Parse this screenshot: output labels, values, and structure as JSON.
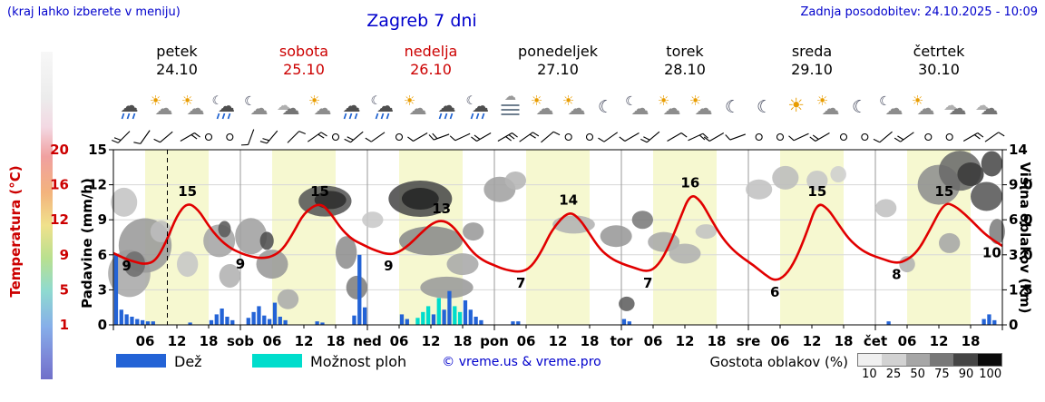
{
  "header": {
    "hint": "(kraj lahko izberete v meniju)",
    "title": "Zagreb 7 dni",
    "updated": "Zadnja posodobitev: 24.10.2025 - 10:09"
  },
  "days": [
    {
      "name": "petek",
      "date": "24.10",
      "highlight": false
    },
    {
      "name": "sobota",
      "date": "25.10",
      "highlight": true
    },
    {
      "name": "nedelja",
      "date": "26.10",
      "highlight": true
    },
    {
      "name": "ponedeljek",
      "date": "27.10",
      "highlight": false
    },
    {
      "name": "torek",
      "date": "28.10",
      "highlight": false
    },
    {
      "name": "sreda",
      "date": "29.10",
      "highlight": false
    },
    {
      "name": "četrtek",
      "date": "30.10",
      "highlight": false
    }
  ],
  "axes": {
    "temp_label": "Temperatura (°C)",
    "precip_label": "Padavine (mm/h)",
    "cloud_label": "Višina oblakov (km)",
    "temp_ticks": [
      "20",
      "16",
      "12",
      "9",
      "5",
      "1"
    ],
    "precip_ticks": [
      "15",
      "12",
      "9",
      "6",
      "3",
      "0"
    ],
    "cloud_ticks": [
      "14",
      "9.0",
      "6.0",
      "3.0",
      "1.5",
      "0"
    ]
  },
  "x_axis": {
    "hour_labels": [
      "06",
      "12",
      "18"
    ],
    "day_abbrevs": [
      "sob",
      "ned",
      "pon",
      "tor",
      "sre",
      "čet"
    ]
  },
  "legend": {
    "rain_label": "Dež",
    "showers_label": "Možnost ploh",
    "copyright": "© vreme.us & vreme.pro",
    "density_label": "Gostota oblakov (%)",
    "density_ticks": [
      "10",
      "25",
      "50",
      "75",
      "90",
      "100"
    ],
    "density_colors": [
      "#f0f0f0",
      "#d2d2d2",
      "#a6a6a6",
      "#787878",
      "#454545",
      "#0a0a0a"
    ]
  },
  "colors": {
    "blue_text": "#0000cc",
    "red_text": "#cc0000",
    "temp_curve": "#e10000",
    "rain_bar": "#2363d6",
    "showers_bar": "#00ddcc",
    "day_band": "#f6f8d0"
  },
  "chart_data": {
    "type": "line",
    "title": "Zagreb 7 dni",
    "x_unit": "hours from 24.10. 00:00",
    "x_range": [
      0,
      168
    ],
    "now_line_hour": 10.2,
    "sun_bands": {
      "start_hour": 6,
      "end_hour": 18,
      "color": "#f6f8d0"
    },
    "precip_axis": {
      "unit": "mm/h",
      "max": 15
    },
    "cloud_axis": {
      "unit": "km",
      "levels_km": [
        0,
        1.5,
        3,
        6,
        9,
        14
      ]
    },
    "temperature": {
      "unit": "°C",
      "color": "#e10000",
      "points": [
        [
          0,
          9.2
        ],
        [
          2,
          8.6
        ],
        [
          4,
          8.2
        ],
        [
          6,
          7.9
        ],
        [
          8,
          8.3
        ],
        [
          10,
          10.5
        ],
        [
          12,
          13.5
        ],
        [
          14,
          15
        ],
        [
          16,
          14.2
        ],
        [
          18,
          12.3
        ],
        [
          20,
          10.8
        ],
        [
          22,
          9.8
        ],
        [
          24,
          9.2
        ],
        [
          26,
          8.8
        ],
        [
          28,
          8.6
        ],
        [
          30,
          8.8
        ],
        [
          32,
          9.6
        ],
        [
          34,
          11.5
        ],
        [
          36,
          13.8
        ],
        [
          39,
          15
        ],
        [
          41,
          13.8
        ],
        [
          43,
          12
        ],
        [
          45,
          10.8
        ],
        [
          47,
          10.2
        ],
        [
          49,
          9.6
        ],
        [
          52,
          9
        ],
        [
          54,
          9.3
        ],
        [
          56,
          10.2
        ],
        [
          58,
          11.4
        ],
        [
          60,
          12.5
        ],
        [
          62,
          13
        ],
        [
          64,
          12.4
        ],
        [
          66,
          10.8
        ],
        [
          68,
          9.2
        ],
        [
          70,
          8.3
        ],
        [
          72,
          7.8
        ],
        [
          74,
          7.3
        ],
        [
          77,
          7
        ],
        [
          79,
          7.6
        ],
        [
          81,
          9.5
        ],
        [
          83,
          12
        ],
        [
          86,
          14
        ],
        [
          88,
          13.2
        ],
        [
          90,
          11.4
        ],
        [
          92,
          9.6
        ],
        [
          94,
          8.6
        ],
        [
          96,
          8
        ],
        [
          98,
          7.6
        ],
        [
          101,
          7
        ],
        [
          103,
          7.8
        ],
        [
          105,
          10
        ],
        [
          107,
          13
        ],
        [
          109,
          16
        ],
        [
          111,
          15.2
        ],
        [
          113,
          13
        ],
        [
          115,
          11
        ],
        [
          117,
          9.6
        ],
        [
          119,
          8.6
        ],
        [
          121,
          7.8
        ],
        [
          123,
          6.8
        ],
        [
          125,
          6
        ],
        [
          127,
          6.6
        ],
        [
          129,
          8.5
        ],
        [
          131,
          11.5
        ],
        [
          133,
          15
        ],
        [
          135,
          14.3
        ],
        [
          137,
          12.5
        ],
        [
          139,
          10.8
        ],
        [
          141,
          9.7
        ],
        [
          143,
          9
        ],
        [
          145,
          8.6
        ],
        [
          148,
          8
        ],
        [
          150,
          8.4
        ],
        [
          152,
          9.4
        ],
        [
          154,
          11.5
        ],
        [
          157,
          15
        ],
        [
          159,
          14.6
        ],
        [
          161,
          13.6
        ],
        [
          163,
          12.4
        ],
        [
          165,
          11.2
        ],
        [
          168,
          10
        ]
      ],
      "labels": [
        [
          2.5,
          9,
          "9",
          "below"
        ],
        [
          14,
          15,
          "15",
          "above"
        ],
        [
          24,
          9.2,
          "9",
          "below"
        ],
        [
          39,
          15,
          "15",
          "above"
        ],
        [
          52,
          9,
          "9",
          "below"
        ],
        [
          62,
          13,
          "13",
          "above"
        ],
        [
          77,
          7,
          "7",
          "below"
        ],
        [
          86,
          14,
          "14",
          "above"
        ],
        [
          101,
          7,
          "7",
          "below"
        ],
        [
          109,
          16,
          "16",
          "above"
        ],
        [
          125,
          6,
          "6",
          "below"
        ],
        [
          133,
          15,
          "15",
          "above"
        ],
        [
          148,
          8,
          "8",
          "below"
        ],
        [
          157,
          15,
          "15",
          "above"
        ],
        [
          166,
          10.5,
          "10",
          "below"
        ]
      ]
    },
    "precipitation": {
      "unit": "mm/h",
      "bars": [
        [
          0,
          6,
          0
        ],
        [
          1,
          1.3,
          0
        ],
        [
          2,
          0.9,
          0
        ],
        [
          3,
          0.7,
          0
        ],
        [
          4,
          0.5,
          0
        ],
        [
          5,
          0.4,
          0
        ],
        [
          6,
          0.3,
          0
        ],
        [
          7,
          0.3,
          0
        ],
        [
          14,
          0.2,
          0
        ],
        [
          18,
          0.4,
          0
        ],
        [
          19,
          0.9,
          0
        ],
        [
          20,
          1.4,
          0
        ],
        [
          21,
          0.7,
          0
        ],
        [
          22,
          0.4,
          0
        ],
        [
          25,
          0.6,
          0
        ],
        [
          26,
          1.1,
          0
        ],
        [
          27,
          1.6,
          0
        ],
        [
          28,
          0.8,
          0
        ],
        [
          29,
          0.5,
          0
        ],
        [
          30,
          1.9,
          0
        ],
        [
          31,
          0.7,
          0
        ],
        [
          32,
          0.4,
          0
        ],
        [
          38,
          0.3,
          0
        ],
        [
          39,
          0.2,
          0
        ],
        [
          45,
          0.8,
          0
        ],
        [
          46,
          6,
          0
        ],
        [
          47,
          1.5,
          0
        ],
        [
          54,
          0.9,
          0
        ],
        [
          55,
          0.5,
          0
        ],
        [
          57,
          0.6,
          1
        ],
        [
          58,
          1.1,
          1
        ],
        [
          59,
          1.6,
          1
        ],
        [
          60,
          0.9,
          0
        ],
        [
          61,
          2.3,
          1
        ],
        [
          62,
          1.3,
          0
        ],
        [
          63,
          2.9,
          0
        ],
        [
          64,
          1.6,
          1
        ],
        [
          65,
          1.1,
          1
        ],
        [
          66,
          2.1,
          0
        ],
        [
          67,
          1.3,
          0
        ],
        [
          68,
          0.7,
          0
        ],
        [
          69,
          0.4,
          0
        ],
        [
          75,
          0.3,
          0
        ],
        [
          76,
          0.3,
          0
        ],
        [
          96,
          0.5,
          0
        ],
        [
          97,
          0.3,
          0
        ],
        [
          146,
          0.3,
          0
        ],
        [
          164,
          0.5,
          0
        ],
        [
          165,
          0.9,
          0
        ],
        [
          166,
          0.4,
          0
        ]
      ]
    },
    "clouds": {
      "blobs": [
        [
          2,
          7.5,
          2.5,
          16,
          "#c4c4c4"
        ],
        [
          3,
          2.2,
          4,
          26,
          "#a9a9a9"
        ],
        [
          6,
          3.8,
          5,
          30,
          "#9a9a9a"
        ],
        [
          4,
          2.6,
          2,
          14,
          "#6e6e6e"
        ],
        [
          9,
          5,
          2,
          12,
          "#bdbdbd"
        ],
        [
          14,
          2.6,
          2,
          14,
          "#c6c6c6"
        ],
        [
          20,
          4.2,
          3,
          18,
          "#a5a5a5"
        ],
        [
          21,
          5.2,
          1.2,
          9,
          "#5a5a5a"
        ],
        [
          22,
          2.1,
          2,
          13,
          "#b2b2b2"
        ],
        [
          26,
          4.6,
          3,
          20,
          "#a0a0a0"
        ],
        [
          29,
          4.2,
          1.3,
          10,
          "#4f4f4f"
        ],
        [
          30,
          2.6,
          3,
          16,
          "#999999"
        ],
        [
          33,
          1.1,
          2,
          11,
          "#ababab"
        ],
        [
          40,
          7.6,
          5,
          17,
          "#565656"
        ],
        [
          41,
          7.7,
          3,
          10,
          "#2e2e2e"
        ],
        [
          44,
          3.2,
          2,
          18,
          "#8e8e8e"
        ],
        [
          46,
          1.6,
          2,
          13,
          "#7e7e7e"
        ],
        [
          49,
          6,
          2,
          9,
          "#c8c8c8"
        ],
        [
          58,
          7.8,
          6,
          20,
          "#4a4a4a"
        ],
        [
          58,
          7.8,
          3.5,
          12,
          "#262626"
        ],
        [
          60,
          4.2,
          6,
          16,
          "#8a8a8a"
        ],
        [
          63,
          1.6,
          5,
          12,
          "#9a9a9a"
        ],
        [
          66,
          2.6,
          3,
          12,
          "#a8a8a8"
        ],
        [
          68,
          5,
          2,
          10,
          "#9a9a9a"
        ],
        [
          73,
          8.6,
          3,
          14,
          "#a2a2a2"
        ],
        [
          76,
          9.6,
          2,
          10,
          "#b5b5b5"
        ],
        [
          87,
          5.6,
          4,
          10,
          "#b2b2b2"
        ],
        [
          95,
          4.6,
          3,
          12,
          "#989898"
        ],
        [
          97,
          0.9,
          1.5,
          8,
          "#5e5e5e"
        ],
        [
          100,
          6,
          2,
          10,
          "#7a7a7a"
        ],
        [
          104,
          4.1,
          3,
          11,
          "#a8a8a8"
        ],
        [
          108,
          3.1,
          3,
          11,
          "#b0b0b0"
        ],
        [
          112,
          5,
          2,
          8,
          "#c2c2c2"
        ],
        [
          122,
          8.6,
          2.5,
          11,
          "#c2c2c2"
        ],
        [
          127,
          10,
          2.5,
          13,
          "#bcbcbc"
        ],
        [
          133,
          9.6,
          2,
          11,
          "#c6c6c6"
        ],
        [
          137,
          10.5,
          1.5,
          9,
          "#cecece"
        ],
        [
          146,
          7,
          2,
          10,
          "#c2c2c2"
        ],
        [
          150,
          2.6,
          1.5,
          9,
          "#b2b2b2"
        ],
        [
          156,
          9,
          4,
          22,
          "#8e8e8e"
        ],
        [
          160,
          11,
          4,
          22,
          "#6a6a6a"
        ],
        [
          162,
          10.5,
          2.5,
          13,
          "#3a3a3a"
        ],
        [
          165,
          8,
          3,
          16,
          "#585858"
        ],
        [
          166,
          12,
          2,
          14,
          "#4a4a4a"
        ],
        [
          158,
          4,
          2,
          11,
          "#a6a6a6"
        ],
        [
          167,
          5,
          1.5,
          14,
          "#7e7e7e"
        ]
      ]
    },
    "icons": [
      "rain",
      "partly",
      "partly",
      "night-rain",
      "night-cloud",
      "cloudy",
      "partly",
      "rain",
      "night-rain",
      "partly",
      "rain",
      "night-rain",
      "fog",
      "partly",
      "partly",
      "night",
      "night-cloud",
      "partly",
      "partly",
      "night",
      "night",
      "sunny",
      "partly",
      "night",
      "night-cloud",
      "partly",
      "cloudy",
      "cloudy"
    ],
    "wind": [
      [
        2,
        2,
        225
      ],
      [
        6,
        1,
        215
      ],
      [
        10,
        1,
        230
      ],
      [
        14,
        2,
        60
      ],
      [
        18,
        0,
        0
      ],
      [
        22,
        0,
        0
      ],
      [
        26,
        1,
        200
      ],
      [
        30,
        2,
        220
      ],
      [
        34,
        1,
        45
      ],
      [
        38,
        2,
        55
      ],
      [
        42,
        0,
        0
      ],
      [
        46,
        2,
        230
      ],
      [
        50,
        1,
        235
      ],
      [
        54,
        0,
        0
      ],
      [
        58,
        1,
        240
      ],
      [
        62,
        2,
        250
      ],
      [
        66,
        1,
        245
      ],
      [
        70,
        2,
        240
      ],
      [
        74,
        3,
        60
      ],
      [
        78,
        2,
        55
      ],
      [
        82,
        1,
        50
      ],
      [
        86,
        0,
        0
      ],
      [
        90,
        0,
        0
      ],
      [
        94,
        1,
        235
      ],
      [
        98,
        1,
        240
      ],
      [
        102,
        2,
        230
      ],
      [
        106,
        1,
        60
      ],
      [
        110,
        2,
        65
      ],
      [
        114,
        1,
        240
      ],
      [
        118,
        1,
        250
      ],
      [
        122,
        0,
        0
      ],
      [
        126,
        0,
        0
      ],
      [
        130,
        1,
        245
      ],
      [
        134,
        2,
        240
      ],
      [
        138,
        0,
        0
      ],
      [
        142,
        0,
        0
      ],
      [
        146,
        1,
        230
      ],
      [
        150,
        2,
        235
      ],
      [
        154,
        0,
        0
      ],
      [
        158,
        0,
        0
      ],
      [
        162,
        2,
        60
      ],
      [
        166,
        1,
        55
      ]
    ]
  }
}
